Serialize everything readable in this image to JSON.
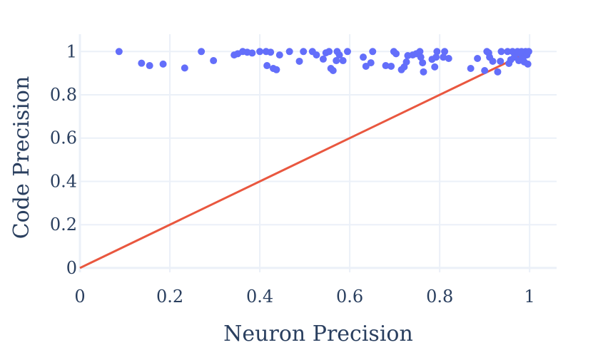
{
  "chart_data": {
    "type": "scatter",
    "title": "",
    "xlabel": "Neuron Precision",
    "ylabel": "Code Precision",
    "xlim": [
      0,
      1.06
    ],
    "ylim": [
      -0.02,
      1.08
    ],
    "xticks": [
      0,
      0.2,
      0.4,
      0.6,
      0.8,
      1
    ],
    "xtick_labels": [
      "0",
      "0.2",
      "0.4",
      "0.6",
      "0.8",
      "1"
    ],
    "yticks": [
      0,
      0.2,
      0.4,
      0.6,
      0.8,
      1
    ],
    "ytick_labels": [
      "0",
      "0.2",
      "0.4",
      "0.6",
      "0.8",
      "1"
    ],
    "grid": true,
    "legend": "none",
    "colors": {
      "points": "#636efa",
      "line": "#e9573f",
      "grid": "#ebf0f8",
      "text": "#2a3f5f"
    },
    "series": [
      {
        "kind": "scatter",
        "points": [
          [
            0.087,
            1.0
          ],
          [
            0.137,
            0.946
          ],
          [
            0.155,
            0.935
          ],
          [
            0.185,
            0.942
          ],
          [
            0.233,
            0.924
          ],
          [
            0.27,
            1.0
          ],
          [
            0.297,
            0.958
          ],
          [
            0.343,
            0.984
          ],
          [
            0.351,
            0.99
          ],
          [
            0.362,
            1.0
          ],
          [
            0.372,
            0.997
          ],
          [
            0.383,
            0.993
          ],
          [
            0.4,
            1.0
          ],
          [
            0.414,
            1.0
          ],
          [
            0.416,
            0.935
          ],
          [
            0.424,
            0.997
          ],
          [
            0.43,
            0.922
          ],
          [
            0.437,
            0.916
          ],
          [
            0.444,
            0.984
          ],
          [
            0.466,
            1.0
          ],
          [
            0.488,
            0.955
          ],
          [
            0.497,
            1.0
          ],
          [
            0.517,
            1.0
          ],
          [
            0.526,
            0.984
          ],
          [
            0.541,
            0.965
          ],
          [
            0.547,
            0.994
          ],
          [
            0.554,
            1.0
          ],
          [
            0.558,
            0.922
          ],
          [
            0.563,
            0.912
          ],
          [
            0.57,
            0.958
          ],
          [
            0.572,
            1.0
          ],
          [
            0.577,
            0.984
          ],
          [
            0.585,
            0.958
          ],
          [
            0.595,
            1.0
          ],
          [
            0.63,
            0.974
          ],
          [
            0.636,
            0.932
          ],
          [
            0.647,
            0.948
          ],
          [
            0.651,
            1.0
          ],
          [
            0.68,
            0.935
          ],
          [
            0.692,
            0.932
          ],
          [
            0.698,
            1.0
          ],
          [
            0.703,
            0.99
          ],
          [
            0.715,
            0.916
          ],
          [
            0.721,
            0.929
          ],
          [
            0.726,
            0.952
          ],
          [
            0.729,
            0.981
          ],
          [
            0.74,
            0.984
          ],
          [
            0.748,
            0.99
          ],
          [
            0.756,
            1.0
          ],
          [
            0.758,
            0.974
          ],
          [
            0.762,
            0.948
          ],
          [
            0.764,
            0.906
          ],
          [
            0.783,
            0.964
          ],
          [
            0.789,
            0.929
          ],
          [
            0.792,
            0.974
          ],
          [
            0.794,
            1.0
          ],
          [
            0.808,
            0.974
          ],
          [
            0.811,
            1.0
          ],
          [
            0.82,
            0.968
          ],
          [
            0.869,
            0.922
          ],
          [
            0.884,
            0.968
          ],
          [
            0.9,
            0.912
          ],
          [
            0.905,
            1.0
          ],
          [
            0.909,
            0.994
          ],
          [
            0.911,
            0.974
          ],
          [
            0.918,
            0.955
          ],
          [
            0.929,
            0.906
          ],
          [
            0.935,
            0.955
          ],
          [
            0.937,
            1.0
          ],
          [
            0.951,
            1.0
          ],
          [
            0.954,
            0.945
          ],
          [
            0.958,
            0.962
          ],
          [
            0.962,
            1.0
          ],
          [
            0.966,
            0.974
          ],
          [
            0.969,
            0.99
          ],
          [
            0.973,
            1.0
          ],
          [
            0.976,
            0.958
          ],
          [
            0.979,
            0.99
          ],
          [
            0.982,
            1.0
          ],
          [
            0.985,
            0.968
          ],
          [
            0.988,
            0.952
          ],
          [
            0.991,
            1.0
          ],
          [
            0.994,
            0.984
          ],
          [
            0.996,
            0.942
          ],
          [
            0.998,
            1.0
          ]
        ]
      },
      {
        "kind": "line",
        "points": [
          [
            0,
            0
          ],
          [
            1,
            1
          ]
        ]
      }
    ]
  }
}
